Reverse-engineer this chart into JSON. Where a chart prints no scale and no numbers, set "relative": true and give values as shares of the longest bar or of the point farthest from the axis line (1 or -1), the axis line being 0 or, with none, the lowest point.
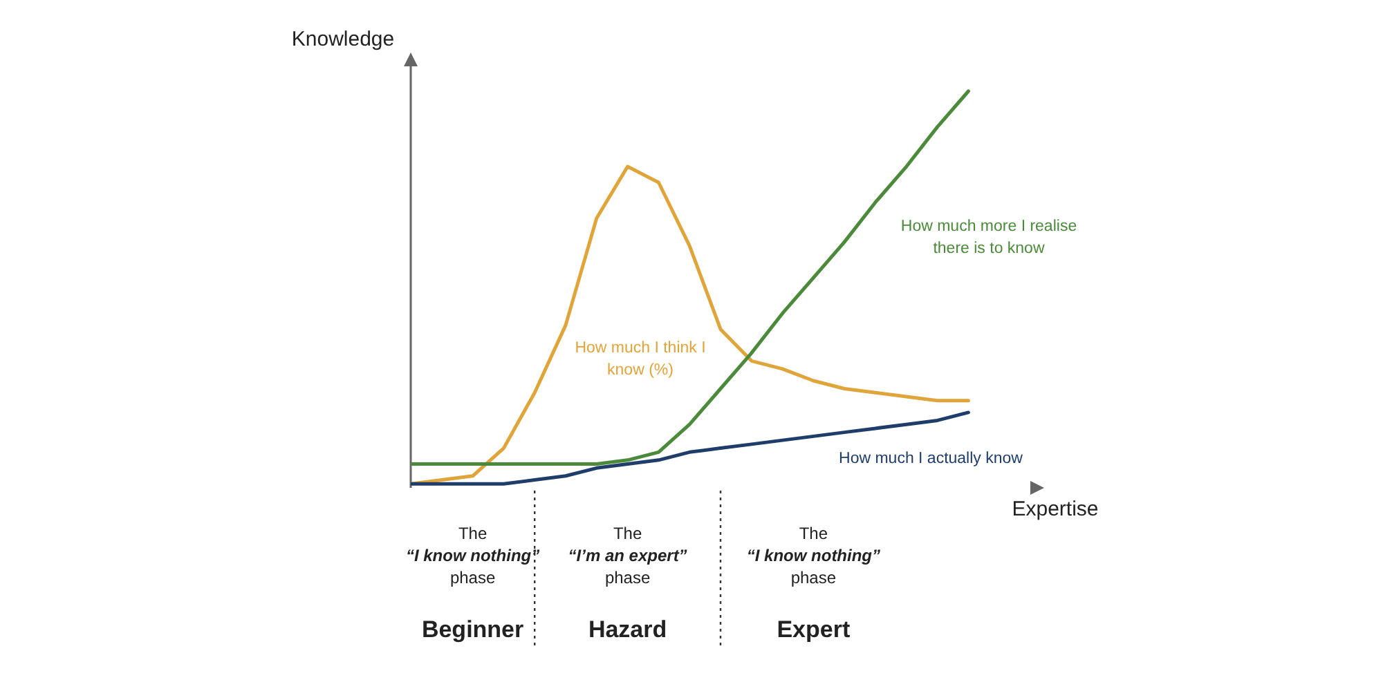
{
  "chart_data": {
    "type": "line",
    "relative": true,
    "xlabel": "Expertise",
    "ylabel": "Knowledge",
    "categories": [
      null,
      null,
      null,
      null,
      null,
      null,
      null,
      null,
      null,
      null,
      null,
      null,
      null,
      null,
      null,
      null,
      null,
      null,
      null
    ],
    "marker": "none",
    "series": [
      {
        "name": "How much I think I know (%)",
        "color": "#e0a53a",
        "values": [
          0.01,
          0.02,
          0.03,
          0.1,
          0.24,
          0.41,
          0.68,
          0.81,
          0.77,
          0.61,
          0.4,
          0.32,
          0.3,
          0.27,
          0.25,
          0.24,
          0.23,
          0.22,
          0.22
        ]
      },
      {
        "name": "How much more I realise there is to know",
        "color": "#4a8a3a",
        "values": [
          0.06,
          0.06,
          0.06,
          0.06,
          0.06,
          0.06,
          0.06,
          0.07,
          0.09,
          0.16,
          0.25,
          0.34,
          0.44,
          0.53,
          0.62,
          0.72,
          0.81,
          0.91,
          1
        ]
      },
      {
        "name": "How much I actually know",
        "color": "#1f3d6b",
        "values": [
          0.01,
          0.01,
          0.01,
          0.01,
          0.02,
          0.03,
          0.05,
          0.06,
          0.07,
          0.09,
          0.1,
          0.11,
          0.12,
          0.13,
          0.14,
          0.15,
          0.16,
          0.17,
          0.19
        ]
      }
    ],
    "annotations": [
      "The “I know nothing” phase",
      "Beginner",
      "The “I’m an expert” phase",
      "Hazard",
      "The “I know nothing” phase",
      "Expert"
    ]
  }
}
